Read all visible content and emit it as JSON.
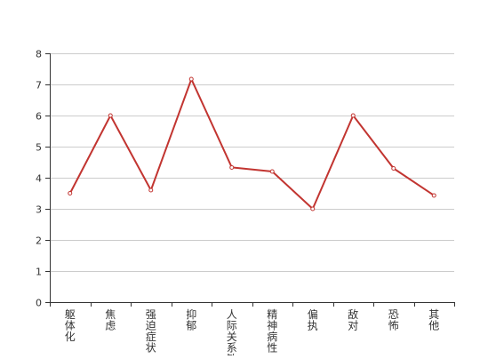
{
  "chart_data": {
    "type": "line",
    "title": "",
    "xlabel": "",
    "ylabel": "",
    "categories": [
      "躯体化",
      "焦虑",
      "强迫症状",
      "抑郁",
      "人际关系敏感",
      "精神病性",
      "偏执",
      "敌对",
      "恐怖",
      "其他"
    ],
    "series": [
      {
        "values": [
          3.5,
          6.0,
          3.6,
          7.17,
          4.33,
          4.2,
          3.0,
          6.0,
          4.3,
          3.43
        ]
      }
    ],
    "ylim": [
      0,
      8
    ],
    "yticks": [
      "0",
      "1",
      "2",
      "3",
      "4",
      "5",
      "6",
      "7",
      "8"
    ],
    "grid": true,
    "legend": "none",
    "line_color": "#c23531",
    "grid_color": "#cccccc",
    "axis_color": "#333333"
  }
}
